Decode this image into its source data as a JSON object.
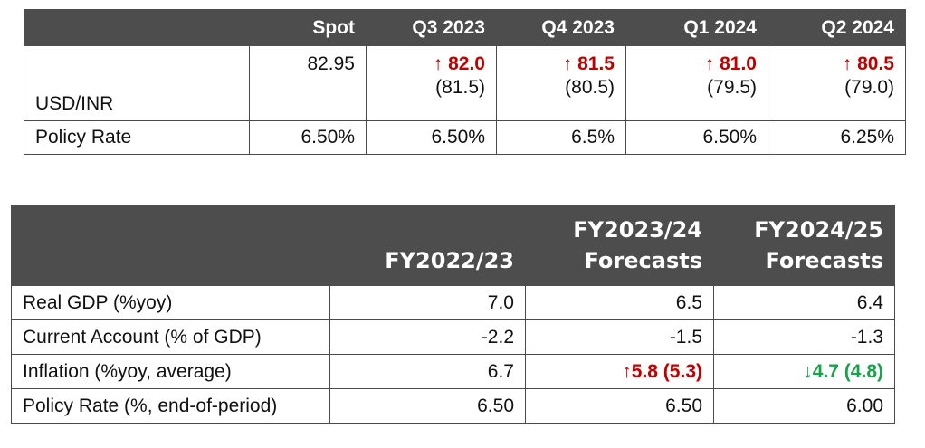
{
  "fx_table": {
    "headers": [
      "",
      "Spot",
      "Q3 2023",
      "Q4 2023",
      "Q1 2024",
      "Q2 2024"
    ],
    "usdinr": {
      "label": "USD/INR",
      "spot": "82.95",
      "forecasts": [
        {
          "value": "↑ 82.0",
          "prev": "(81.5)"
        },
        {
          "value": "↑ 81.5",
          "prev": "(80.5)"
        },
        {
          "value": "↑ 81.0",
          "prev": "(79.5)"
        },
        {
          "value": "↑ 80.5",
          "prev": "(79.0)"
        }
      ]
    },
    "policy_rate": {
      "label": "Policy Rate",
      "values": [
        "6.50%",
        "6.50%",
        "6.5%",
        "6.50%",
        "6.25%"
      ]
    }
  },
  "macro_table": {
    "headers": {
      "col1": "FY2022/23",
      "col2_line1": "FY2023/24",
      "col2_line2": "Forecasts",
      "col3_line1": "FY2024/25",
      "col3_line2": "Forecasts"
    },
    "rows": [
      {
        "label": "Real GDP (%yoy)",
        "values": [
          "7.0",
          "6.5",
          "6.4"
        ]
      },
      {
        "label": "Current Account (% of GDP)",
        "values": [
          "-2.2",
          "-1.5",
          "-1.3"
        ]
      },
      {
        "label": "Inflation (%yoy, average)",
        "values": [
          "6.7",
          "↑5.8 (5.3)",
          "↓4.7 (4.8)"
        ]
      },
      {
        "label": "Policy Rate (%, end-of-period)",
        "values": [
          "6.50",
          "6.50",
          "6.00"
        ]
      }
    ]
  },
  "colors": {
    "header_bg": "#4d4d4d",
    "up_red": "#c00000",
    "down_green": "#17a34a"
  }
}
